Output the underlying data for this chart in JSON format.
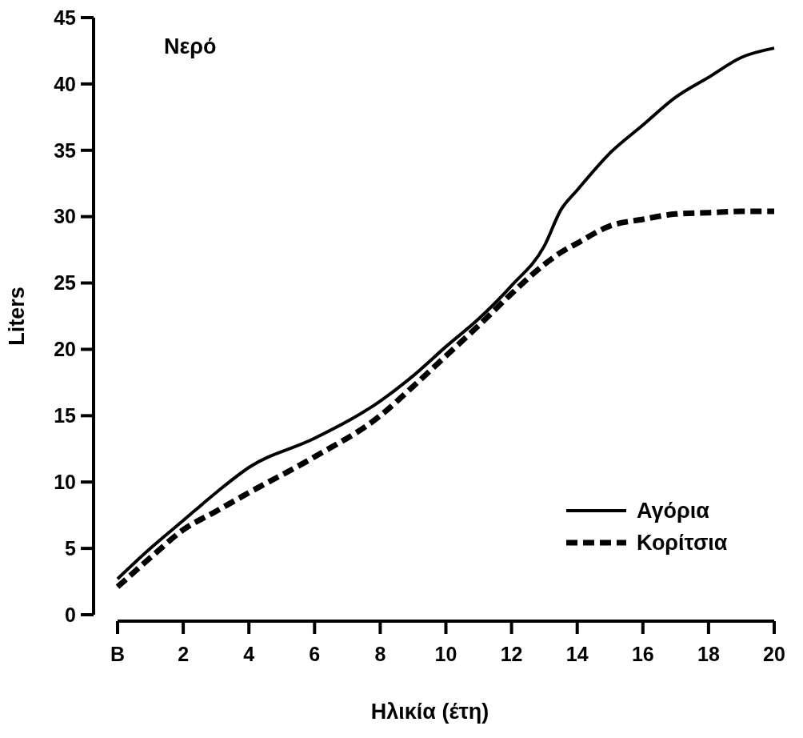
{
  "chart_data": {
    "type": "line",
    "xlabel": "Ηλικία (έτη)",
    "ylabel": "Liters",
    "annotations": [
      "Νερό"
    ],
    "x": [
      0,
      1,
      2,
      3,
      4,
      6,
      8,
      9,
      10,
      11,
      12,
      13,
      13.5,
      14,
      15,
      16,
      17,
      18,
      19,
      20
    ],
    "series": [
      {
        "name": "Αγόρια",
        "color": "#000000",
        "line_style": "solid",
        "values": [
          2.7,
          5,
          7.1,
          9.2,
          11.1,
          13.3,
          16.1,
          18,
          20.2,
          22.3,
          24.8,
          27.8,
          30.5,
          32,
          34.8,
          36.9,
          39,
          40.5,
          42,
          42.7
        ]
      },
      {
        "name": "Κορίτσια",
        "color": "#000000",
        "line_style": "dashed",
        "values": [
          2.1,
          4.3,
          6.4,
          7.8,
          9.2,
          11.9,
          15,
          17.2,
          19.5,
          21.8,
          24.2,
          26.4,
          27.3,
          28,
          29.3,
          29.8,
          30.2,
          30.3,
          30.4,
          30.4
        ]
      }
    ],
    "xlim": [
      0,
      20
    ],
    "xticks": [
      {
        "value": 0,
        "label": "B"
      },
      2,
      4,
      6,
      8,
      10,
      12,
      14,
      16,
      18,
      20
    ],
    "ylim": [
      0,
      45
    ],
    "yticks": [
      0,
      5,
      10,
      15,
      20,
      25,
      30,
      35,
      40,
      45
    ],
    "grid": false,
    "legend": "bottom right"
  }
}
